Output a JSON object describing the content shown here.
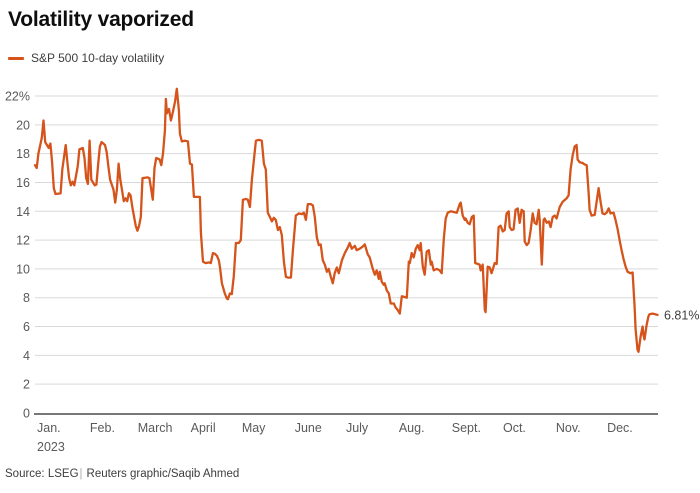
{
  "title": "Volatility vaporized",
  "legend": {
    "label": "S&P 500 10-day volatility"
  },
  "annotation": {
    "last_value_label": "6.81%"
  },
  "source": {
    "prefix": "Source: LSEG",
    "separator": "|",
    "credit": "Reuters graphic/Saqib Ahmed"
  },
  "colors": {
    "line": "#d5541b",
    "grid": "#d9d9d9",
    "axis": "#787878",
    "axis_label": "#5a5a5a",
    "annotation_text": "#3f3f3f",
    "title_text": "#0e0e0e"
  },
  "chart_data": {
    "type": "line",
    "title": "Volatility vaporized",
    "series_name": "S&P 500 10-day volatility",
    "x_unit": "day of year 2023",
    "x_axis": {
      "months": [
        "Jan.",
        "Feb.",
        "March",
        "April",
        "May",
        "June",
        "July",
        "Aug.",
        "Sept.",
        "Oct.",
        "Nov.",
        "Dec."
      ],
      "year_label": "2023",
      "month_start_days": [
        0,
        31,
        59,
        90,
        120,
        151,
        181,
        212,
        243,
        273,
        304,
        334
      ],
      "days_total": 365,
      "grid": false
    },
    "y_axis": {
      "min": 0,
      "max": 22,
      "tick_step": 2,
      "top_label": "22%",
      "zero_label": "0",
      "grid": true,
      "unit": "percent"
    },
    "legend_position": "top-left",
    "last_value_label": "6.81%",
    "points": [
      [
        0,
        17.2
      ],
      [
        1,
        17.0
      ],
      [
        2,
        18.0
      ],
      [
        4,
        19.1
      ],
      [
        5,
        20.3
      ],
      [
        6,
        18.8
      ],
      [
        8,
        18.4
      ],
      [
        9,
        18.7
      ],
      [
        10,
        17.4
      ],
      [
        11,
        15.6
      ],
      [
        12,
        15.2
      ],
      [
        15,
        15.25
      ],
      [
        16,
        16.9
      ],
      [
        18,
        18.6
      ],
      [
        19,
        17.4
      ],
      [
        20,
        16.3
      ],
      [
        21,
        15.8
      ],
      [
        22,
        16.05
      ],
      [
        23,
        15.8
      ],
      [
        25,
        17.1
      ],
      [
        26,
        18.3
      ],
      [
        28,
        18.4
      ],
      [
        29,
        17.7
      ],
      [
        30,
        16.3
      ],
      [
        31,
        15.9
      ],
      [
        32,
        18.9
      ],
      [
        33,
        16.2
      ],
      [
        35,
        15.8
      ],
      [
        36,
        15.85
      ],
      [
        37,
        17.3
      ],
      [
        38,
        18.5
      ],
      [
        39,
        18.8
      ],
      [
        41,
        18.6
      ],
      [
        42,
        18.1
      ],
      [
        43,
        17.1
      ],
      [
        44,
        16.2
      ],
      [
        46,
        15.5
      ],
      [
        47,
        14.6
      ],
      [
        48,
        15.5
      ],
      [
        49,
        17.3
      ],
      [
        50,
        16.2
      ],
      [
        52,
        14.7
      ],
      [
        53,
        14.9
      ],
      [
        54,
        14.7
      ],
      [
        55,
        15.25
      ],
      [
        56,
        15.1
      ],
      [
        57,
        14.3
      ],
      [
        59,
        13.0
      ],
      [
        60,
        12.65
      ],
      [
        61,
        13.0
      ],
      [
        62,
        13.6
      ],
      [
        63,
        16.3
      ],
      [
        66,
        16.35
      ],
      [
        67,
        16.3
      ],
      [
        69,
        14.8
      ],
      [
        70,
        17.0
      ],
      [
        71,
        17.7
      ],
      [
        73,
        17.6
      ],
      [
        74,
        17.2
      ],
      [
        75,
        18.0
      ],
      [
        76.1,
        19.6
      ],
      [
        76.7,
        21.8
      ],
      [
        77.3,
        20.8
      ],
      [
        78.5,
        21.1
      ],
      [
        79.6,
        20.3
      ],
      [
        80.8,
        20.9
      ],
      [
        82,
        21.6
      ],
      [
        83.1,
        22.5
      ],
      [
        84.3,
        21.0
      ],
      [
        84.9,
        19.4
      ],
      [
        86,
        18.85
      ],
      [
        87.8,
        18.9
      ],
      [
        89.6,
        18.85
      ],
      [
        90.8,
        17.3
      ],
      [
        91.9,
        17.25
      ],
      [
        93.1,
        15.0
      ],
      [
        94.9,
        15.0
      ],
      [
        96.6,
        15.0
      ],
      [
        97.2,
        12.5
      ],
      [
        98.4,
        10.5
      ],
      [
        100,
        10.4
      ],
      [
        102,
        10.45
      ],
      [
        103,
        10.4
      ],
      [
        104.2,
        11.1
      ],
      [
        105.4,
        11.05
      ],
      [
        106.6,
        10.9
      ],
      [
        107.7,
        10.6
      ],
      [
        108.3,
        10.15
      ],
      [
        109.5,
        9.0
      ],
      [
        111.2,
        8.3
      ],
      [
        112.4,
        7.95
      ],
      [
        113,
        7.9
      ],
      [
        114.2,
        8.3
      ],
      [
        115.3,
        8.25
      ],
      [
        116.5,
        9.5
      ],
      [
        117.7,
        11.8
      ],
      [
        119.4,
        11.8
      ],
      [
        120.6,
        12.0
      ],
      [
        121.8,
        14.8
      ],
      [
        123.5,
        14.85
      ],
      [
        124.7,
        14.8
      ],
      [
        125.9,
        14.3
      ],
      [
        127.1,
        16.2
      ],
      [
        128.2,
        17.5
      ],
      [
        129.4,
        18.9
      ],
      [
        131.1,
        18.95
      ],
      [
        132.9,
        18.9
      ],
      [
        134.1,
        17.3
      ],
      [
        135.2,
        16.9
      ],
      [
        136.4,
        13.9
      ],
      [
        137.6,
        13.6
      ],
      [
        138.8,
        13.3
      ],
      [
        139.9,
        13.55
      ],
      [
        141.1,
        13.4
      ],
      [
        142.3,
        12.7
      ],
      [
        143.4,
        12.9
      ],
      [
        144.6,
        12.35
      ],
      [
        145.8,
        10.5
      ],
      [
        147,
        9.45
      ],
      [
        148.1,
        9.4
      ],
      [
        149.9,
        9.4
      ],
      [
        151.1,
        11.3
      ],
      [
        152.8,
        13.7
      ],
      [
        154.6,
        13.85
      ],
      [
        156.3,
        13.8
      ],
      [
        157.5,
        13.9
      ],
      [
        158.7,
        13.4
      ],
      [
        159.8,
        14.5
      ],
      [
        161.6,
        14.5
      ],
      [
        162.8,
        14.4
      ],
      [
        163.9,
        13.6
      ],
      [
        165.1,
        12.2
      ],
      [
        166.3,
        11.65
      ],
      [
        167.4,
        11.7
      ],
      [
        168.6,
        10.6
      ],
      [
        169.8,
        10.3
      ],
      [
        171,
        9.8
      ],
      [
        172.1,
        10.0
      ],
      [
        173.3,
        9.45
      ],
      [
        174.5,
        9.0
      ],
      [
        175.6,
        9.7
      ],
      [
        176.8,
        10.1
      ],
      [
        178,
        9.7
      ],
      [
        179.8,
        10.6
      ],
      [
        181.5,
        11.1
      ],
      [
        183.3,
        11.5
      ],
      [
        184.4,
        11.8
      ],
      [
        185.6,
        11.4
      ],
      [
        187.4,
        11.6
      ],
      [
        188.5,
        11.3
      ],
      [
        190.3,
        11.4
      ],
      [
        192,
        11.55
      ],
      [
        193.2,
        11.7
      ],
      [
        195,
        11.0
      ],
      [
        196.1,
        10.8
      ],
      [
        197.9,
        10.0
      ],
      [
        199.1,
        9.6
      ],
      [
        200.2,
        9.9
      ],
      [
        201.4,
        9.3
      ],
      [
        202,
        9.8
      ],
      [
        203.2,
        9.1
      ],
      [
        204.3,
        8.9
      ],
      [
        204.9,
        9.0
      ],
      [
        206.1,
        8.5
      ],
      [
        207.3,
        8.3
      ],
      [
        208.4,
        7.6
      ],
      [
        210.2,
        7.6
      ],
      [
        211.4,
        7.3
      ],
      [
        212.5,
        7.15
      ],
      [
        213.7,
        6.9
      ],
      [
        214.9,
        8.1
      ],
      [
        216.6,
        8.05
      ],
      [
        217.8,
        8.0
      ],
      [
        219,
        10.5
      ],
      [
        219.6,
        10.4
      ],
      [
        220.7,
        11.1
      ],
      [
        221.9,
        10.8
      ],
      [
        223.1,
        11.4
      ],
      [
        224.2,
        11.65
      ],
      [
        225.4,
        11.3
      ],
      [
        226,
        11.8
      ],
      [
        227.2,
        10.15
      ],
      [
        228.3,
        9.6
      ],
      [
        229.5,
        11.2
      ],
      [
        230.7,
        11.3
      ],
      [
        231.9,
        10.3
      ],
      [
        232.4,
        10.5
      ],
      [
        233.6,
        9.9
      ],
      [
        235.4,
        10.0
      ],
      [
        237.1,
        9.9
      ],
      [
        238.3,
        9.7
      ],
      [
        239.5,
        12.1
      ],
      [
        240.6,
        13.5
      ],
      [
        241.8,
        13.9
      ],
      [
        243.6,
        14.0
      ],
      [
        245.3,
        13.95
      ],
      [
        247.1,
        13.9
      ],
      [
        248.8,
        14.5
      ],
      [
        249.4,
        14.6
      ],
      [
        250.6,
        13.7
      ],
      [
        251.8,
        13.4
      ],
      [
        252.3,
        13.5
      ],
      [
        253.5,
        13.2
      ],
      [
        254.7,
        13.1
      ],
      [
        255.9,
        13.6
      ],
      [
        257,
        13.7
      ],
      [
        257.9,
        10.4
      ],
      [
        259.4,
        10.35
      ],
      [
        260.5,
        10.3
      ],
      [
        261.1,
        9.9
      ],
      [
        262.3,
        10.3
      ],
      [
        263.5,
        7.15
      ],
      [
        264,
        7.0
      ],
      [
        265.2,
        10.15
      ],
      [
        266.4,
        10.1
      ],
      [
        267.5,
        9.7
      ],
      [
        269.3,
        10.4
      ],
      [
        270.5,
        10.35
      ],
      [
        271.6,
        12.9
      ],
      [
        272.8,
        13.0
      ],
      [
        274,
        12.6
      ],
      [
        275.2,
        12.7
      ],
      [
        276.3,
        13.85
      ],
      [
        277.5,
        14.0
      ],
      [
        278.1,
        12.9
      ],
      [
        279.3,
        12.7
      ],
      [
        280.4,
        12.75
      ],
      [
        281.6,
        14.1
      ],
      [
        282.8,
        14.2
      ],
      [
        284,
        13.2
      ],
      [
        285.1,
        14.1
      ],
      [
        286.3,
        14.0
      ],
      [
        286.9,
        11.9
      ],
      [
        288.1,
        11.65
      ],
      [
        289.2,
        11.8
      ],
      [
        290.4,
        12.7
      ],
      [
        291.6,
        13.85
      ],
      [
        292.7,
        13.2
      ],
      [
        293.9,
        13.1
      ],
      [
        295.1,
        14.1
      ],
      [
        295.7,
        13.4
      ],
      [
        296.9,
        10.3
      ],
      [
        298,
        13.4
      ],
      [
        298.6,
        13.5
      ],
      [
        299.8,
        13.2
      ],
      [
        301,
        13.3
      ],
      [
        302.1,
        12.9
      ],
      [
        303.3,
        13.6
      ],
      [
        304.5,
        13.7
      ],
      [
        305.6,
        13.5
      ],
      [
        307.4,
        14.3
      ],
      [
        309.1,
        14.65
      ],
      [
        311.5,
        14.9
      ],
      [
        312.6,
        15.1
      ],
      [
        313.8,
        16.9
      ],
      [
        315,
        17.9
      ],
      [
        316.2,
        18.5
      ],
      [
        317.3,
        18.6
      ],
      [
        317.9,
        17.6
      ],
      [
        319.1,
        17.4
      ],
      [
        320.8,
        17.35
      ],
      [
        322,
        17.25
      ],
      [
        323.2,
        17.2
      ],
      [
        324.4,
        15.2
      ],
      [
        324.9,
        14.1
      ],
      [
        326.1,
        13.7
      ],
      [
        327.9,
        13.75
      ],
      [
        329,
        14.65
      ],
      [
        330.2,
        15.6
      ],
      [
        331.4,
        14.65
      ],
      [
        332.5,
        13.85
      ],
      [
        333.7,
        13.8
      ],
      [
        334.9,
        13.9
      ],
      [
        336.1,
        14.2
      ],
      [
        337.2,
        13.85
      ],
      [
        339,
        13.9
      ],
      [
        340.1,
        13.4
      ],
      [
        341.3,
        12.8
      ],
      [
        342.5,
        12.0
      ],
      [
        343.7,
        11.3
      ],
      [
        344.8,
        10.7
      ],
      [
        346,
        10.15
      ],
      [
        347.2,
        9.8
      ],
      [
        348.9,
        9.7
      ],
      [
        350.1,
        9.75
      ],
      [
        351.3,
        7.4
      ],
      [
        351.9,
        5.8
      ],
      [
        353,
        4.4
      ],
      [
        353.6,
        4.25
      ],
      [
        354.8,
        5.3
      ],
      [
        356,
        6.0
      ],
      [
        356.5,
        5.4
      ],
      [
        357.1,
        5.1
      ],
      [
        358.3,
        6.1
      ],
      [
        359.4,
        6.7
      ],
      [
        360,
        6.85
      ],
      [
        361.8,
        6.9
      ],
      [
        363.5,
        6.85
      ],
      [
        364.7,
        6.81
      ]
    ]
  }
}
